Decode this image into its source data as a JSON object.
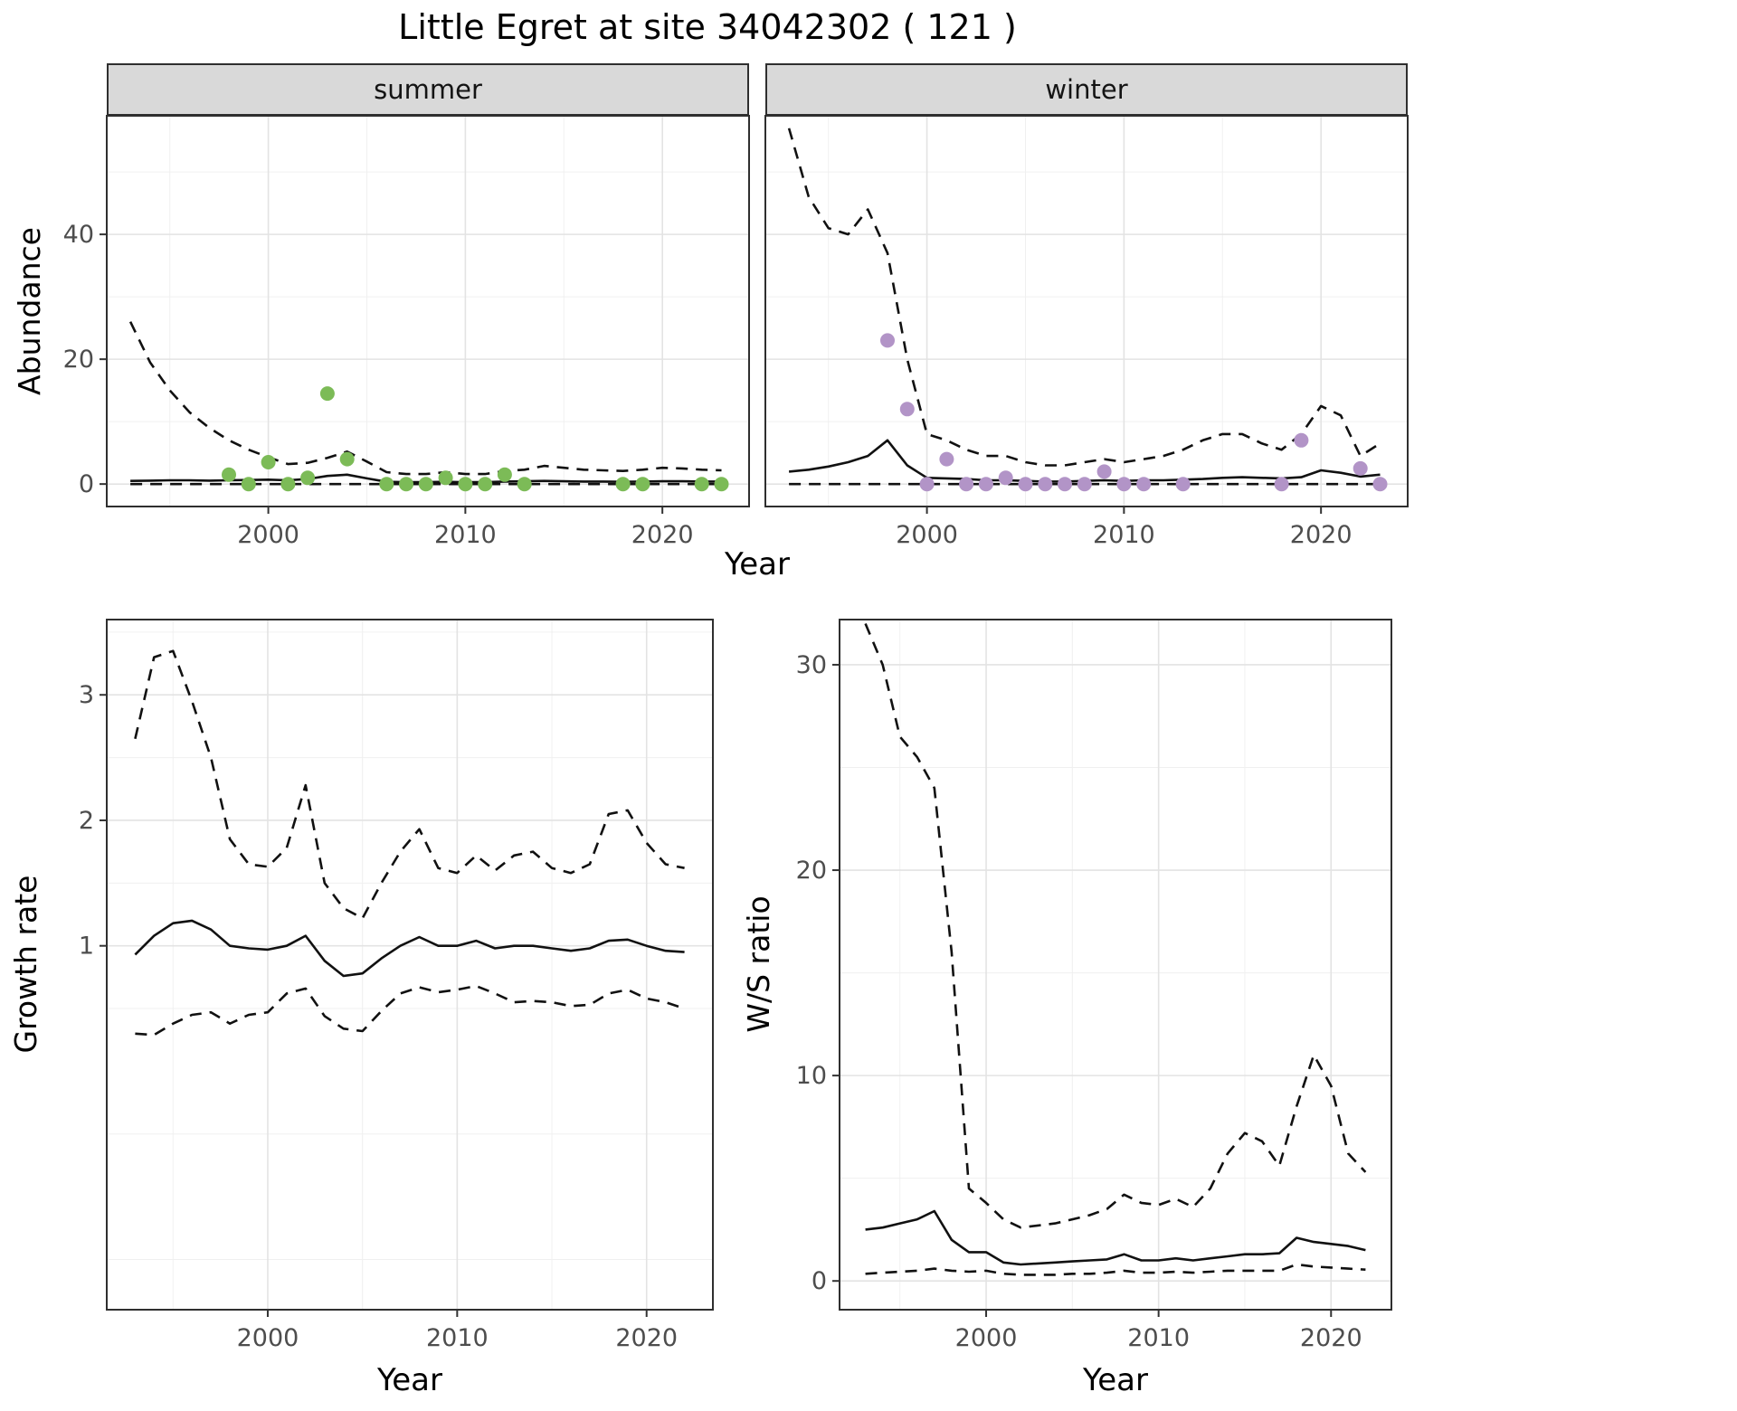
{
  "title": "Little Egret at site 34042302 ( 121 )",
  "colors": {
    "line": "#111111",
    "summer_point": "#7CBB57",
    "winter_point": "#B294C7",
    "strip_bg": "#D9D9D9",
    "grid_major": "#E3E3E3",
    "grid_minor": "#F0F0F0",
    "panel_border": "#2F2F2F",
    "tick": "#333333",
    "tick_label": "#4D4D4D"
  },
  "abundance": {
    "ylabel": "Abundance",
    "xlabel": "Year",
    "facets": [
      "summer",
      "winter"
    ]
  },
  "growth": {
    "ylabel": "Growth rate",
    "xlabel": "Year"
  },
  "ws": {
    "ylabel": "W/S ratio",
    "xlabel": "Year"
  },
  "chart_data": [
    {
      "id": "abundance-summer",
      "type": "line+scatter",
      "title": "summer",
      "xlabel": "Year",
      "ylabel": "Abundance",
      "grid": true,
      "legend": "none",
      "xlim": [
        1991.8,
        2024.4
      ],
      "ylim": [
        -3.6,
        59
      ],
      "xticks": [
        2000,
        2010,
        2020
      ],
      "yticks": [
        0,
        20,
        40
      ],
      "x_minor": [
        1995,
        2005,
        2015
      ],
      "y_minor": [
        10,
        30,
        50
      ],
      "x": [
        1993,
        1994,
        1995,
        1996,
        1997,
        1998,
        1999,
        2000,
        2001,
        2002,
        2003,
        2004,
        2005,
        2006,
        2007,
        2008,
        2009,
        2010,
        2011,
        2012,
        2013,
        2014,
        2015,
        2016,
        2017,
        2018,
        2019,
        2020,
        2021,
        2022,
        2023
      ],
      "series": [
        {
          "name": "upper_ci",
          "style": "dashed",
          "y": [
            26,
            19.5,
            15,
            11.5,
            9,
            7,
            5.5,
            4.3,
            3.2,
            3.4,
            4.2,
            5.2,
            3.6,
            1.9,
            1.6,
            1.6,
            1.9,
            1.6,
            1.6,
            2.1,
            2.3,
            2.9,
            2.6,
            2.3,
            2.2,
            2.1,
            2.3,
            2.6,
            2.5,
            2.3,
            2.2
          ]
        },
        {
          "name": "mean",
          "style": "solid",
          "y": [
            0.5,
            0.55,
            0.6,
            0.6,
            0.55,
            0.6,
            0.65,
            0.7,
            0.6,
            0.8,
            1.3,
            1.5,
            0.9,
            0.35,
            0.3,
            0.3,
            0.35,
            0.3,
            0.3,
            0.4,
            0.45,
            0.5,
            0.45,
            0.4,
            0.4,
            0.35,
            0.4,
            0.45,
            0.45,
            0.4,
            0.4
          ]
        },
        {
          "name": "lower_ci",
          "style": "dashed",
          "y": [
            0,
            0,
            0,
            0,
            0,
            0,
            0,
            0,
            0,
            0,
            0,
            0,
            0,
            0,
            0,
            0,
            0,
            0,
            0,
            0,
            0,
            0,
            0,
            0,
            0,
            0,
            0,
            0,
            0,
            0,
            0
          ]
        }
      ],
      "points": {
        "name": "observations",
        "color": "#7CBB57",
        "x": [
          1998,
          1999,
          2000,
          2001,
          2002,
          2003,
          2004,
          2006,
          2007,
          2008,
          2009,
          2010,
          2011,
          2012,
          2013,
          2018,
          2019,
          2022,
          2023
        ],
        "y": [
          1.5,
          0,
          3.5,
          0,
          1,
          14.5,
          4,
          0,
          0,
          0,
          1,
          0,
          0,
          1.5,
          0,
          0,
          0,
          0,
          0
        ]
      }
    },
    {
      "id": "abundance-winter",
      "type": "line+scatter",
      "title": "winter",
      "xlabel": "Year",
      "ylabel": "Abundance",
      "grid": true,
      "legend": "none",
      "xlim": [
        1991.8,
        2024.4
      ],
      "ylim": [
        -3.6,
        59
      ],
      "xticks": [
        2000,
        2010,
        2020
      ],
      "yticks": [
        0,
        20,
        40
      ],
      "x_minor": [
        1995,
        2005,
        2015
      ],
      "y_minor": [
        10,
        30,
        50
      ],
      "x": [
        1993,
        1994,
        1995,
        1996,
        1997,
        1998,
        1999,
        2000,
        2001,
        2002,
        2003,
        2004,
        2005,
        2006,
        2007,
        2008,
        2009,
        2010,
        2011,
        2012,
        2013,
        2014,
        2015,
        2016,
        2017,
        2018,
        2019,
        2020,
        2021,
        2022,
        2023
      ],
      "series": [
        {
          "name": "upper_ci",
          "style": "dashed",
          "y": [
            57,
            46,
            41,
            40,
            44,
            37,
            20,
            8,
            7,
            5.5,
            4.5,
            4.5,
            3.5,
            3,
            3,
            3.5,
            4,
            3.5,
            4,
            4.5,
            5.5,
            7,
            8,
            8,
            6.5,
            5.5,
            8,
            12.5,
            11,
            4.5,
            6.5
          ]
        },
        {
          "name": "mean",
          "style": "solid",
          "y": [
            2,
            2.3,
            2.8,
            3.5,
            4.5,
            7,
            3,
            1,
            0.9,
            0.8,
            0.6,
            0.6,
            0.5,
            0.4,
            0.4,
            0.5,
            0.6,
            0.5,
            0.6,
            0.6,
            0.7,
            0.8,
            1,
            1.1,
            1,
            0.9,
            1.1,
            2.2,
            1.8,
            1.2,
            1.5
          ]
        },
        {
          "name": "lower_ci",
          "style": "dashed",
          "y": [
            0,
            0,
            0,
            0,
            0,
            0,
            0,
            0,
            0,
            0,
            0,
            0,
            0,
            0,
            0,
            0,
            0,
            0,
            0,
            0,
            0,
            0,
            0,
            0,
            0,
            0,
            0,
            0,
            0,
            0,
            0
          ]
        }
      ],
      "points": {
        "name": "observations",
        "color": "#B294C7",
        "x": [
          1998,
          1999,
          2000,
          2001,
          2002,
          2003,
          2004,
          2005,
          2006,
          2007,
          2008,
          2009,
          2010,
          2011,
          2013,
          2018,
          2019,
          2022,
          2023
        ],
        "y": [
          23,
          12,
          0,
          4,
          0,
          0,
          1,
          0,
          0,
          0,
          0,
          2,
          0,
          0,
          0,
          0,
          7,
          2.5,
          0
        ]
      }
    },
    {
      "id": "growth-rate",
      "type": "line",
      "title": "Growth rate",
      "xlabel": "Year",
      "ylabel": "Growth rate",
      "grid": true,
      "legend": "none",
      "xlim": [
        1991.5,
        2023.5
      ],
      "ylim": [
        -1.9,
        3.6
      ],
      "xticks": [
        2000,
        2010,
        2020
      ],
      "yticks": [
        1,
        2,
        3
      ],
      "x_minor": [
        1995,
        2005,
        2015
      ],
      "y_minor": [
        -1.5,
        -0.5,
        0.5,
        1.5,
        2.5,
        3.5
      ],
      "x": [
        1993,
        1994,
        1995,
        1996,
        1997,
        1998,
        1999,
        2000,
        2001,
        2002,
        2003,
        2004,
        2005,
        2006,
        2007,
        2008,
        2009,
        2010,
        2011,
        2012,
        2013,
        2014,
        2015,
        2016,
        2017,
        2018,
        2019,
        2020,
        2021,
        2022
      ],
      "series": [
        {
          "name": "upper_ci",
          "style": "dashed",
          "y": [
            2.65,
            3.3,
            3.35,
            2.95,
            2.5,
            1.85,
            1.65,
            1.63,
            1.78,
            2.28,
            1.5,
            1.3,
            1.22,
            1.5,
            1.75,
            1.93,
            1.62,
            1.58,
            1.72,
            1.6,
            1.72,
            1.75,
            1.62,
            1.58,
            1.65,
            2.05,
            2.08,
            1.82,
            1.65,
            1.62
          ]
        },
        {
          "name": "mean",
          "style": "solid",
          "y": [
            0.93,
            1.08,
            1.18,
            1.2,
            1.13,
            1.0,
            0.98,
            0.97,
            1.0,
            1.08,
            0.88,
            0.76,
            0.78,
            0.9,
            1.0,
            1.07,
            1.0,
            1.0,
            1.04,
            0.98,
            1.0,
            1.0,
            0.98,
            0.96,
            0.98,
            1.04,
            1.05,
            1.0,
            0.96,
            0.95
          ]
        },
        {
          "name": "lower_ci",
          "style": "dashed",
          "y": [
            0.3,
            0.29,
            0.38,
            0.45,
            0.47,
            0.38,
            0.45,
            0.47,
            0.62,
            0.66,
            0.44,
            0.34,
            0.32,
            0.48,
            0.62,
            0.67,
            0.63,
            0.65,
            0.68,
            0.62,
            0.55,
            0.56,
            0.55,
            0.52,
            0.53,
            0.62,
            0.65,
            0.58,
            0.55,
            0.5
          ]
        }
      ]
    },
    {
      "id": "ws-ratio",
      "type": "line",
      "title": "W/S ratio",
      "xlabel": "Year",
      "ylabel": "W/S ratio",
      "grid": true,
      "legend": "none",
      "xlim": [
        1991.5,
        2023.5
      ],
      "ylim": [
        -1.4,
        32.2
      ],
      "xticks": [
        2000,
        2010,
        2020
      ],
      "yticks": [
        0,
        10,
        20,
        30
      ],
      "x_minor": [
        1995,
        2005,
        2015
      ],
      "y_minor": [
        5,
        15,
        25
      ],
      "x": [
        1993,
        1994,
        1995,
        1996,
        1997,
        1998,
        1999,
        2000,
        2001,
        2002,
        2003,
        2004,
        2005,
        2006,
        2007,
        2008,
        2009,
        2010,
        2011,
        2012,
        2013,
        2014,
        2015,
        2016,
        2017,
        2018,
        2019,
        2020,
        2021,
        2022
      ],
      "series": [
        {
          "name": "upper_ci",
          "style": "dashed",
          "y": [
            32,
            30,
            26.5,
            25.5,
            24,
            16,
            4.5,
            3.8,
            3,
            2.6,
            2.7,
            2.8,
            3,
            3.2,
            3.5,
            4.2,
            3.8,
            3.7,
            4,
            3.6,
            4.5,
            6.2,
            7.2,
            6.8,
            5.6,
            8.5,
            11,
            9.5,
            6.2,
            5.3
          ]
        },
        {
          "name": "mean",
          "style": "solid",
          "y": [
            2.5,
            2.6,
            2.8,
            3,
            3.4,
            2,
            1.4,
            1.4,
            0.9,
            0.8,
            0.85,
            0.9,
            0.95,
            1.0,
            1.05,
            1.3,
            1.0,
            1.0,
            1.1,
            1.0,
            1.1,
            1.2,
            1.3,
            1.3,
            1.35,
            2.1,
            1.9,
            1.8,
            1.7,
            1.5
          ]
        },
        {
          "name": "lower_ci",
          "style": "dashed",
          "y": [
            0.35,
            0.4,
            0.45,
            0.5,
            0.6,
            0.5,
            0.45,
            0.5,
            0.35,
            0.3,
            0.3,
            0.3,
            0.35,
            0.35,
            0.4,
            0.5,
            0.4,
            0.4,
            0.45,
            0.4,
            0.45,
            0.5,
            0.5,
            0.5,
            0.5,
            0.8,
            0.7,
            0.65,
            0.6,
            0.55
          ]
        }
      ]
    }
  ]
}
